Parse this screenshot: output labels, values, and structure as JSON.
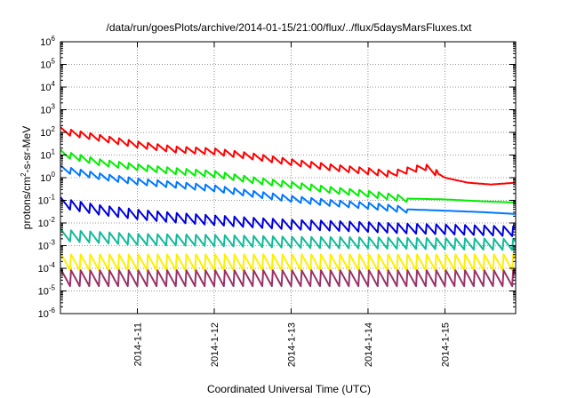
{
  "chart_data": {
    "type": "line",
    "title": "/data/run/goesPlots/archive/2014-01-15/21:00/flux/../flux/5daysMarsFluxes.txt",
    "xlabel": "Coordinated Universal Time (UTC)",
    "ylabel_parts": [
      "protons/cm",
      "2",
      "-s-sr-MeV"
    ],
    "x_range_days": [
      10.0,
      15.92
    ],
    "x_ticks": [
      {
        "day": 11,
        "label": "2014-1-11"
      },
      {
        "day": 12,
        "label": "2014-1-12"
      },
      {
        "day": 13,
        "label": "2014-1-13"
      },
      {
        "day": 14,
        "label": "2014-1-14"
      },
      {
        "day": 15,
        "label": "2014-1-15"
      }
    ],
    "y_scale": "log",
    "y_exponent_range": [
      -6,
      6
    ],
    "y_ticks": [
      {
        "base": "10",
        "exp": "6"
      },
      {
        "base": "10",
        "exp": "5"
      },
      {
        "base": "10",
        "exp": "4"
      },
      {
        "base": "10",
        "exp": "3"
      },
      {
        "base": "10",
        "exp": "2"
      },
      {
        "base": "10",
        "exp": "1"
      },
      {
        "base": "10",
        "exp": "0"
      },
      {
        "base": "10",
        "exp": "-1"
      },
      {
        "base": "10",
        "exp": "-2"
      },
      {
        "base": "10",
        "exp": "-3"
      },
      {
        "base": "10",
        "exp": "-4"
      },
      {
        "base": "10",
        "exp": "-5"
      },
      {
        "base": "10",
        "exp": "-6"
      }
    ],
    "grid": true,
    "series": [
      {
        "color": "#ff0000",
        "x": [
          10.0,
          10.5,
          11.0,
          11.5,
          12.0,
          12.5,
          13.0,
          13.5,
          14.0,
          14.3,
          14.6,
          14.75,
          14.85,
          15.0,
          15.3,
          15.6,
          15.92
        ],
        "y": [
          120,
          60,
          30,
          18,
          15,
          9,
          5,
          3,
          2,
          1.5,
          2.5,
          3.0,
          2.0,
          1.0,
          0.6,
          0.5,
          0.6
        ],
        "sawtooth_factor": 2.0,
        "sawtooth_until": 14.9
      },
      {
        "color": "#00ee00",
        "x": [
          10.0,
          10.5,
          11.0,
          11.5,
          12.0,
          12.5,
          13.0,
          13.5,
          14.0,
          14.5,
          15.0,
          15.5,
          15.92
        ],
        "y": [
          12,
          5,
          3,
          2,
          1.5,
          0.8,
          0.5,
          0.3,
          0.2,
          0.12,
          0.11,
          0.09,
          0.08
        ],
        "sawtooth_factor": 2.0,
        "sawtooth_until": 14.5
      },
      {
        "color": "#0077ff",
        "x": [
          10.0,
          10.5,
          11.0,
          11.5,
          12.0,
          12.5,
          13.0,
          13.5,
          14.0,
          14.5,
          15.0,
          15.5,
          15.92
        ],
        "y": [
          2.5,
          1.2,
          0.7,
          0.5,
          0.35,
          0.2,
          0.12,
          0.08,
          0.06,
          0.04,
          0.035,
          0.03,
          0.025
        ],
        "sawtooth_factor": 2.0,
        "sawtooth_until": 14.5
      },
      {
        "color": "#0000dd",
        "x": [
          10.0,
          10.5,
          11.0,
          11.5,
          12.0,
          12.5,
          13.0,
          13.5,
          14.0,
          14.5,
          15.0,
          15.5,
          15.92
        ],
        "y": [
          0.08,
          0.04,
          0.025,
          0.018,
          0.014,
          0.011,
          0.009,
          0.008,
          0.007,
          0.006,
          0.0055,
          0.005,
          0.0045
        ],
        "sawtooth_factor": 3.0,
        "sawtooth_until": 15.92
      },
      {
        "color": "#11bb99",
        "x": [
          10.0,
          11.0,
          12.0,
          13.0,
          14.0,
          15.0,
          15.92
        ],
        "y": [
          0.003,
          0.002,
          0.0018,
          0.0015,
          0.0014,
          0.0013,
          0.0012
        ],
        "sawtooth_factor": 3.5,
        "sawtooth_until": 15.92
      },
      {
        "color": "#ffee00",
        "x": [
          10.0,
          15.92
        ],
        "y": [
          0.0002,
          0.0002
        ],
        "sawtooth_factor": 6.0,
        "sawtooth_until": 15.92
      },
      {
        "color": "#993366",
        "x": [
          10.0,
          15.92
        ],
        "y": [
          4e-05,
          4e-05
        ],
        "sawtooth_factor": 6.0,
        "sawtooth_until": 15.92
      }
    ]
  }
}
